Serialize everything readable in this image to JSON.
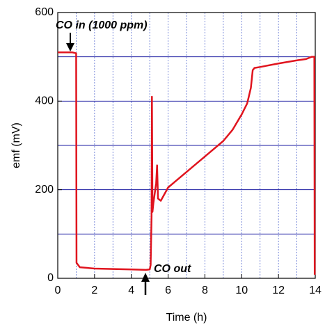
{
  "chart_data": {
    "type": "line",
    "x_label": "Time (h)",
    "y_label": "emf (mV)",
    "xlim": [
      0,
      14
    ],
    "ylim": [
      0,
      600
    ],
    "xticks": [
      0,
      2,
      4,
      6,
      8,
      10,
      12,
      14
    ],
    "yticks": [
      0,
      200,
      400,
      600
    ],
    "xgrid": [
      1,
      2,
      3,
      4,
      5,
      6,
      7,
      8,
      9,
      10,
      11,
      12,
      13
    ],
    "ygrid": [
      100,
      200,
      300,
      400,
      500
    ],
    "grid": true,
    "annotations": [
      "CO in (1000 ppm)",
      "CO out"
    ],
    "series": [
      {
        "name": "emf",
        "color": "#e0141e",
        "x": [
          0,
          0.3,
          0.8,
          1.0,
          1.02,
          1.2,
          2,
          3,
          4,
          4.8,
          5.0,
          5.05,
          5.1,
          5.12,
          5.15,
          5.2,
          5.35,
          5.4,
          5.45,
          5.6,
          6,
          7,
          8,
          9,
          9.5,
          10,
          10.3,
          10.5,
          10.6,
          10.7,
          11,
          12,
          13,
          13.5,
          13.8,
          13.95,
          13.97
        ],
        "values": [
          510,
          510,
          510,
          508,
          35,
          25,
          22,
          21,
          20,
          19,
          20,
          30,
          140,
          410,
          150,
          170,
          215,
          255,
          180,
          175,
          205,
          240,
          275,
          310,
          335,
          370,
          395,
          430,
          470,
          475,
          477,
          485,
          492,
          495,
          500,
          500,
          8
        ]
      }
    ]
  }
}
